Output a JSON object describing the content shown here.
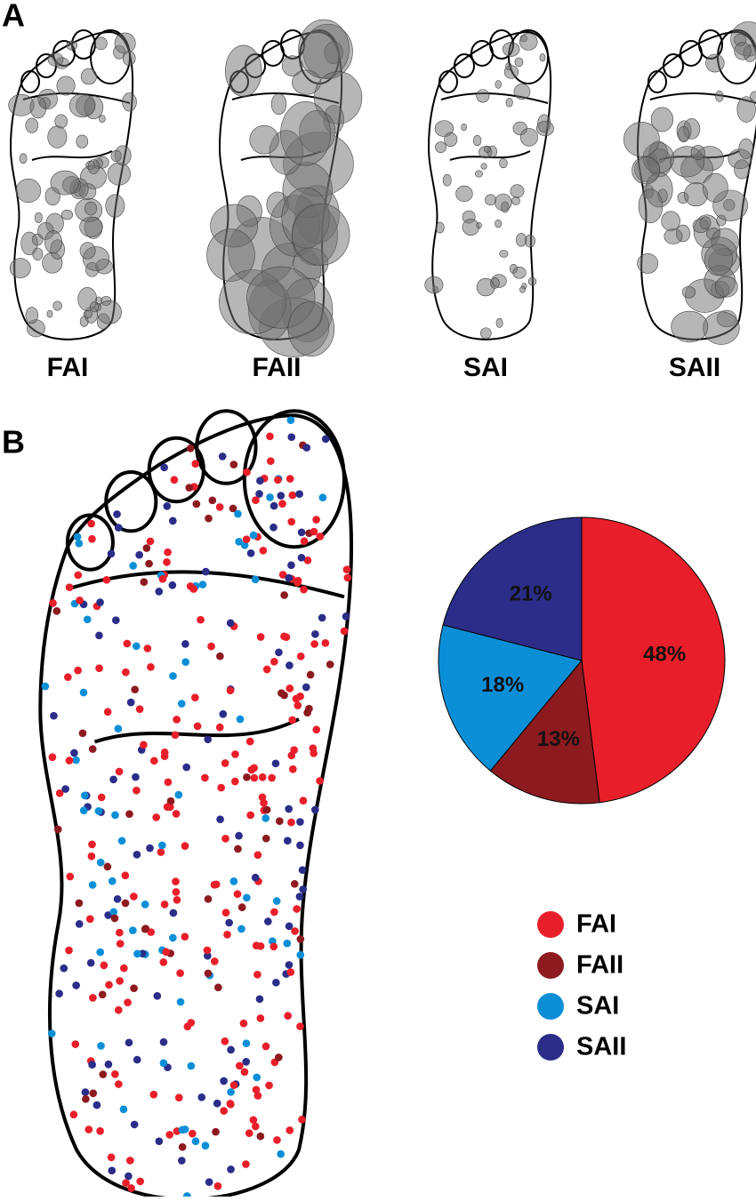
{
  "panels": [
    {
      "label": "A",
      "foot_labels": [
        "FAI",
        "FAII",
        "SAI",
        "SAII"
      ]
    },
    {
      "label": "B"
    }
  ],
  "chart_data": {
    "type": "pie",
    "categories": [
      "FAI",
      "FAII",
      "SAI",
      "SAII"
    ],
    "values": [
      48,
      13,
      18,
      21
    ],
    "value_labels": [
      "48%",
      "13%",
      "18%",
      "21%"
    ],
    "colors": [
      "#e81f2a",
      "#8d1a1f",
      "#0a8fd7",
      "#2b2d88"
    ],
    "legend": "bottom"
  }
}
